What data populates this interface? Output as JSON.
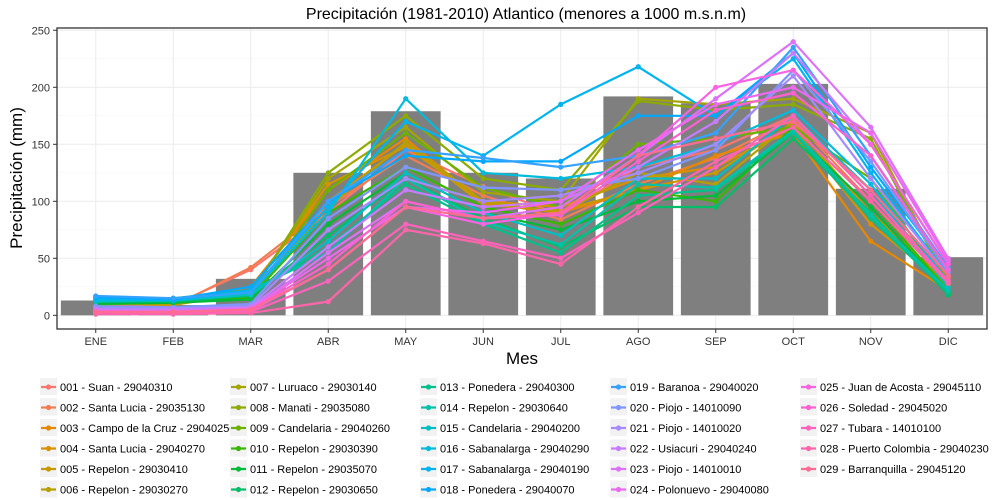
{
  "chart_data": {
    "type": "line",
    "title": "Precipitación (1981-2010) Atlantico (menores a 1000 m.s.n.m)",
    "xlabel": "Mes",
    "ylabel": "Precipitación (mm)",
    "ylim": [
      -12,
      252
    ],
    "yticks": [
      0,
      50,
      100,
      150,
      200,
      250
    ],
    "grid": true,
    "legend_position": "bottom",
    "categories": [
      "ENE",
      "FEB",
      "MAR",
      "ABR",
      "MAY",
      "JUN",
      "JUL",
      "AGO",
      "SEP",
      "OCT",
      "NOV",
      "DIC"
    ],
    "bars": {
      "name": "",
      "color": "#7f7f7f",
      "values": [
        13,
        9,
        32,
        125,
        179,
        125,
        120,
        192,
        186,
        203,
        111,
        51
      ]
    },
    "series": [
      {
        "name": "001 - Suan - 29040310",
        "color": "#F8766D",
        "values": [
          8,
          9,
          40,
          90,
          145,
          113,
          88,
          130,
          145,
          175,
          105,
          33
        ]
      },
      {
        "name": "002 - Santa Lucia - 29035130",
        "color": "#F27D52",
        "values": [
          10,
          8,
          42,
          95,
          140,
          105,
          84,
          115,
          138,
          172,
          100,
          30
        ]
      },
      {
        "name": "003 - Campo de la Cruz - 29040250",
        "color": "#E58700",
        "values": [
          13,
          11,
          25,
          110,
          155,
          98,
          90,
          110,
          140,
          160,
          65,
          22
        ]
      },
      {
        "name": "004 - Santa Lucia - 29040270",
        "color": "#D89000",
        "values": [
          12,
          10,
          22,
          115,
          148,
          100,
          95,
          120,
          130,
          165,
          80,
          25
        ]
      },
      {
        "name": "005 - Repelon - 29030410",
        "color": "#C99800",
        "values": [
          11,
          9,
          20,
          100,
          150,
          97,
          92,
          110,
          125,
          168,
          90,
          28
        ]
      },
      {
        "name": "006 - Repelon - 29030270",
        "color": "#B79F00",
        "values": [
          10,
          10,
          18,
          95,
          152,
          100,
          90,
          125,
          115,
          170,
          85,
          26
        ]
      },
      {
        "name": "007 - Luruaco - 29030140",
        "color": "#A3A500",
        "values": [
          9,
          12,
          20,
          120,
          165,
          108,
          100,
          190,
          185,
          190,
          160,
          30
        ]
      },
      {
        "name": "008 - Manati - 29035080",
        "color": "#8BAB00",
        "values": [
          12,
          13,
          18,
          125,
          175,
          120,
          110,
          188,
          180,
          185,
          155,
          28
        ]
      },
      {
        "name": "009 - Candelaria - 29040260",
        "color": "#6BB100",
        "values": [
          10,
          11,
          15,
          110,
          160,
          112,
          95,
          150,
          155,
          165,
          120,
          25
        ]
      },
      {
        "name": "010 - Repelon - 29030390",
        "color": "#39B600",
        "values": [
          11,
          12,
          16,
          90,
          130,
          95,
          80,
          110,
          100,
          165,
          100,
          22
        ]
      },
      {
        "name": "011 - Repelon - 29035070",
        "color": "#00BA38",
        "values": [
          10,
          11,
          14,
          80,
          125,
          90,
          75,
          100,
          105,
          160,
          95,
          20
        ]
      },
      {
        "name": "012 - Repelon - 29030650",
        "color": "#00BE67",
        "values": [
          12,
          12,
          17,
          70,
          120,
          85,
          60,
          95,
          95,
          155,
          90,
          18
        ]
      },
      {
        "name": "013 - Ponedera - 29040300",
        "color": "#00C08B",
        "values": [
          13,
          14,
          20,
          60,
          115,
          80,
          55,
          105,
          110,
          160,
          85,
          20
        ]
      },
      {
        "name": "014 - Repelon - 29030640",
        "color": "#00C1AA",
        "values": [
          14,
          15,
          22,
          55,
          120,
          82,
          62,
          115,
          112,
          162,
          88,
          22
        ]
      },
      {
        "name": "015 - Candelaria - 29040200",
        "color": "#00BFC4",
        "values": [
          12,
          13,
          18,
          65,
          125,
          90,
          70,
          120,
          120,
          175,
          110,
          25
        ]
      },
      {
        "name": "016 - Sabanalarga - 29040290",
        "color": "#00BBDB",
        "values": [
          13,
          14,
          20,
          90,
          190,
          125,
          120,
          130,
          150,
          180,
          115,
          30
        ]
      },
      {
        "name": "017 - Sabanalarga - 29040190",
        "color": "#00B4EF",
        "values": [
          15,
          13,
          22,
          95,
          170,
          140,
          185,
          218,
          175,
          225,
          125,
          35
        ]
      },
      {
        "name": "018 - Ponedera - 29040070",
        "color": "#00A9FF",
        "values": [
          16,
          14,
          25,
          100,
          140,
          135,
          135,
          175,
          175,
          230,
          130,
          40
        ]
      },
      {
        "name": "019 - Baranoa - 29040020",
        "color": "#35A2FF",
        "values": [
          17,
          15,
          20,
          100,
          145,
          138,
          130,
          140,
          160,
          235,
          140,
          42
        ]
      },
      {
        "name": "020 - Piojo - 14010090",
        "color": "#7F96FF",
        "values": [
          8,
          7,
          10,
          85,
          130,
          112,
          110,
          120,
          145,
          215,
          135,
          38
        ]
      },
      {
        "name": "021 - Piojo - 14010020",
        "color": "#A58AFF",
        "values": [
          6,
          6,
          8,
          75,
          120,
          100,
          105,
          125,
          150,
          210,
          120,
          35
        ]
      },
      {
        "name": "022 - Usiacuri - 29040240",
        "color": "#C77CFF",
        "values": [
          5,
          5,
          7,
          60,
          110,
          95,
          100,
          130,
          170,
          230,
          150,
          45
        ]
      },
      {
        "name": "023 - Piojo - 14010010",
        "color": "#DC71FA",
        "values": [
          3,
          4,
          5,
          55,
          100,
          85,
          95,
          140,
          190,
          240,
          165,
          50
        ]
      },
      {
        "name": "024 - Polonuevo - 29040080",
        "color": "#EC69EF",
        "values": [
          4,
          3,
          6,
          50,
          95,
          90,
          100,
          145,
          185,
          200,
          160,
          48
        ]
      },
      {
        "name": "025 - Juan de Acosta - 29045110",
        "color": "#F763E0",
        "values": [
          2,
          2,
          4,
          40,
          95,
          80,
          90,
          140,
          200,
          215,
          150,
          45
        ]
      },
      {
        "name": "026 - Soledad - 29045020",
        "color": "#FC61CF",
        "values": [
          3,
          3,
          5,
          45,
          100,
          85,
          88,
          135,
          180,
          195,
          140,
          40
        ]
      },
      {
        "name": "027 - Tubara - 14010100",
        "color": "#FF62BC",
        "values": [
          2,
          2,
          3,
          30,
          80,
          65,
          50,
          90,
          130,
          175,
          105,
          30
        ]
      },
      {
        "name": "028 - Puerto Colombia - 29040230",
        "color": "#FF65AA",
        "values": [
          1,
          1,
          2,
          12,
          75,
          63,
          45,
          95,
          135,
          165,
          100,
          28
        ]
      },
      {
        "name": "029 - Barranquilla - 29045120",
        "color": "#FF6C91",
        "values": [
          3,
          3,
          5,
          40,
          95,
          85,
          90,
          140,
          155,
          170,
          110,
          35
        ]
      }
    ]
  }
}
